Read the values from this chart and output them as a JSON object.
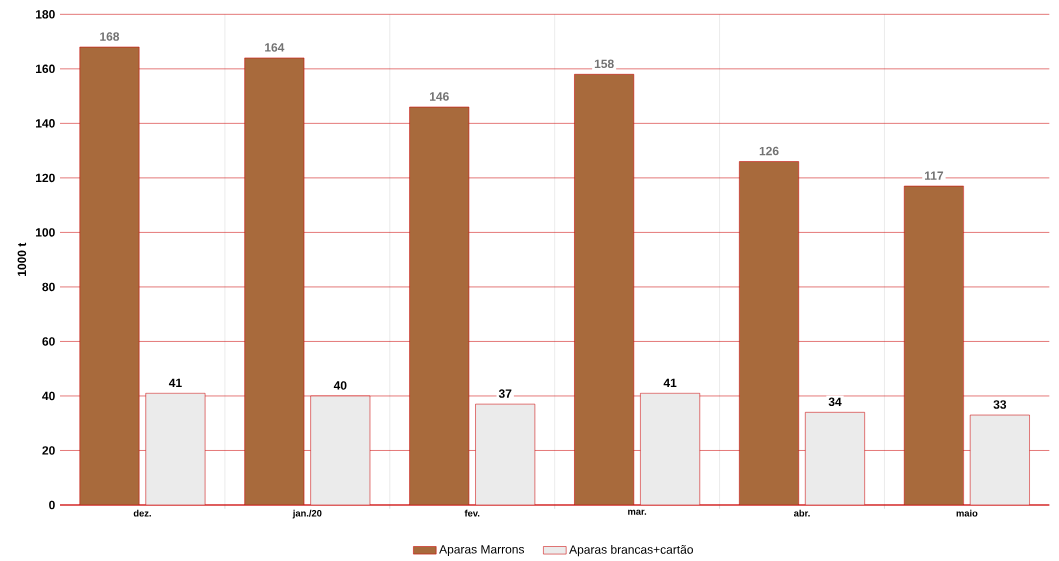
{
  "chart_data": {
    "type": "bar",
    "ylabel": "1000 t",
    "categories": [
      "dez.",
      "jan./20",
      "fev.",
      "mar.",
      "abr.",
      "maio"
    ],
    "series": [
      {
        "name": "Aparas Marrons",
        "color": "#a86a3c",
        "values": [
          168,
          164,
          146,
          158,
          126,
          117
        ]
      },
      {
        "name": "Aparas brancas+cartão",
        "color": "#ebebeb",
        "values": [
          41,
          40,
          37,
          41,
          34,
          33
        ]
      }
    ],
    "ylim": [
      0,
      180
    ],
    "yticks": [
      0,
      20,
      40,
      60,
      80,
      100,
      120,
      140,
      160,
      180
    ],
    "grid": true,
    "legend": "bottom",
    "data_labels": true
  }
}
